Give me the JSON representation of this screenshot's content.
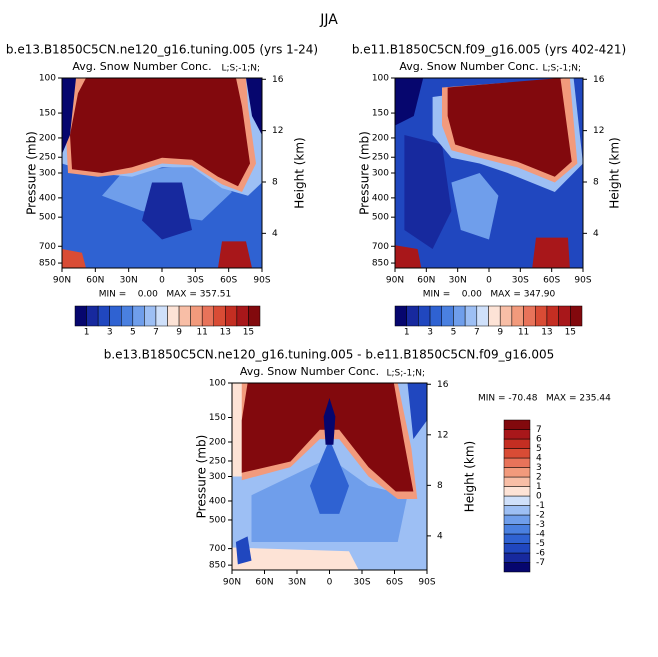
{
  "title": "JJA",
  "chart_data": [
    {
      "type": "contour",
      "title": "b.e13.B1850C5CN.ne120_g16.tuning.005 (yrs 1-24)",
      "subtitle": "Avg. Snow Number Conc.",
      "subtitle_right": "L;S;-1;N;",
      "ylabel": "Pressure (mb)",
      "y2label": "Height (km)",
      "xlim": [
        90,
        -90
      ],
      "xticks": [
        {
          "value": 90,
          "label": "90N"
        },
        {
          "value": 60,
          "label": "60N"
        },
        {
          "value": 30,
          "label": "30N"
        },
        0,
        {
          "value": -30,
          "label": "30S"
        },
        {
          "value": -60,
          "label": "60S"
        },
        {
          "value": -90,
          "label": "90S"
        }
      ],
      "ylim": [
        900,
        100
      ],
      "ylog": true,
      "yticks": [
        100,
        150,
        200,
        250,
        300,
        400,
        500,
        700,
        850
      ],
      "y2lim": [
        1.3,
        16.1
      ],
      "y2ticks": [
        4,
        8,
        12,
        16
      ],
      "stats": "MIN =    0.00   MAX = 357.51",
      "colorbar": {
        "orientation": "horizontal",
        "lim": [
          0,
          16
        ],
        "ticks": [
          1,
          3,
          5,
          7,
          9,
          11,
          13,
          15
        ],
        "colors": [
          "#06066e",
          "#17299e",
          "#2047bf",
          "#2f62d2",
          "#4a80e0",
          "#6f9eeb",
          "#9dbff4",
          "#cfe0fa",
          "#fde3d6",
          "#f8bea6",
          "#f29a7c",
          "#e8735a",
          "#d94c35",
          "#c42e22",
          "#a8171a",
          "#82090d"
        ]
      }
    },
    {
      "type": "contour",
      "title": "b.e11.B1850C5CN.f09_g16.005 (yrs 402-421)",
      "subtitle": "Avg. Snow Number Conc.",
      "subtitle_right": "L;S;-1;N;",
      "ylabel": "Pressure (mb)",
      "y2label": "Height (km)",
      "xlim": [
        90,
        -90
      ],
      "xticks": [
        {
          "value": 90,
          "label": "90N"
        },
        {
          "value": 60,
          "label": "60N"
        },
        {
          "value": 30,
          "label": "30N"
        },
        0,
        {
          "value": -30,
          "label": "30S"
        },
        {
          "value": -60,
          "label": "60S"
        },
        {
          "value": -90,
          "label": "90S"
        }
      ],
      "ylim": [
        900,
        100
      ],
      "ylog": true,
      "yticks": [
        100,
        150,
        200,
        250,
        300,
        400,
        500,
        700,
        850
      ],
      "y2lim": [
        1.3,
        16.1
      ],
      "y2ticks": [
        4,
        8,
        12,
        16
      ],
      "stats": "MIN =    0.00   MAX = 347.90",
      "colorbar": {
        "orientation": "horizontal",
        "lim": [
          0,
          16
        ],
        "ticks": [
          1,
          3,
          5,
          7,
          9,
          11,
          13,
          15
        ],
        "colors": [
          "#06066e",
          "#17299e",
          "#2047bf",
          "#2f62d2",
          "#4a80e0",
          "#6f9eeb",
          "#9dbff4",
          "#cfe0fa",
          "#fde3d6",
          "#f8bea6",
          "#f29a7c",
          "#e8735a",
          "#d94c35",
          "#c42e22",
          "#a8171a",
          "#82090d"
        ]
      }
    },
    {
      "type": "contour",
      "title": "b.e13.B1850C5CN.ne120_g16.tuning.005 - b.e11.B1850C5CN.f09_g16.005",
      "subtitle": "Avg. Snow Number Conc.",
      "subtitle_right": "L;S;-1;N;",
      "ylabel": "Pressure (mb)",
      "y2label": "Height (km)",
      "xlim": [
        90,
        -90
      ],
      "xticks": [
        {
          "value": 90,
          "label": "90N"
        },
        {
          "value": 60,
          "label": "60N"
        },
        {
          "value": 30,
          "label": "30N"
        },
        0,
        {
          "value": -30,
          "label": "30S"
        },
        {
          "value": -60,
          "label": "60S"
        },
        {
          "value": -90,
          "label": "90S"
        }
      ],
      "ylim": [
        900,
        100
      ],
      "ylog": true,
      "yticks": [
        100,
        150,
        200,
        250,
        300,
        400,
        500,
        700,
        850
      ],
      "y2lim": [
        1.3,
        16.1
      ],
      "y2ticks": [
        4,
        8,
        12,
        16
      ],
      "stats": "MIN = -70.48   MAX = 235.44",
      "colorbar": {
        "orientation": "vertical",
        "lim": [
          -8,
          8
        ],
        "ticks": [
          7,
          6,
          5,
          4,
          3,
          2,
          1,
          0,
          -1,
          -2,
          -3,
          -4,
          -5,
          -6,
          -7
        ],
        "colors": [
          "#06066e",
          "#17299e",
          "#2047bf",
          "#2f62d2",
          "#4a80e0",
          "#6f9eeb",
          "#9dbff4",
          "#cfe0fa",
          "#fde3d6",
          "#f8bea6",
          "#f29a7c",
          "#e8735a",
          "#d94c35",
          "#c42e22",
          "#a8171a",
          "#82090d"
        ]
      }
    }
  ]
}
